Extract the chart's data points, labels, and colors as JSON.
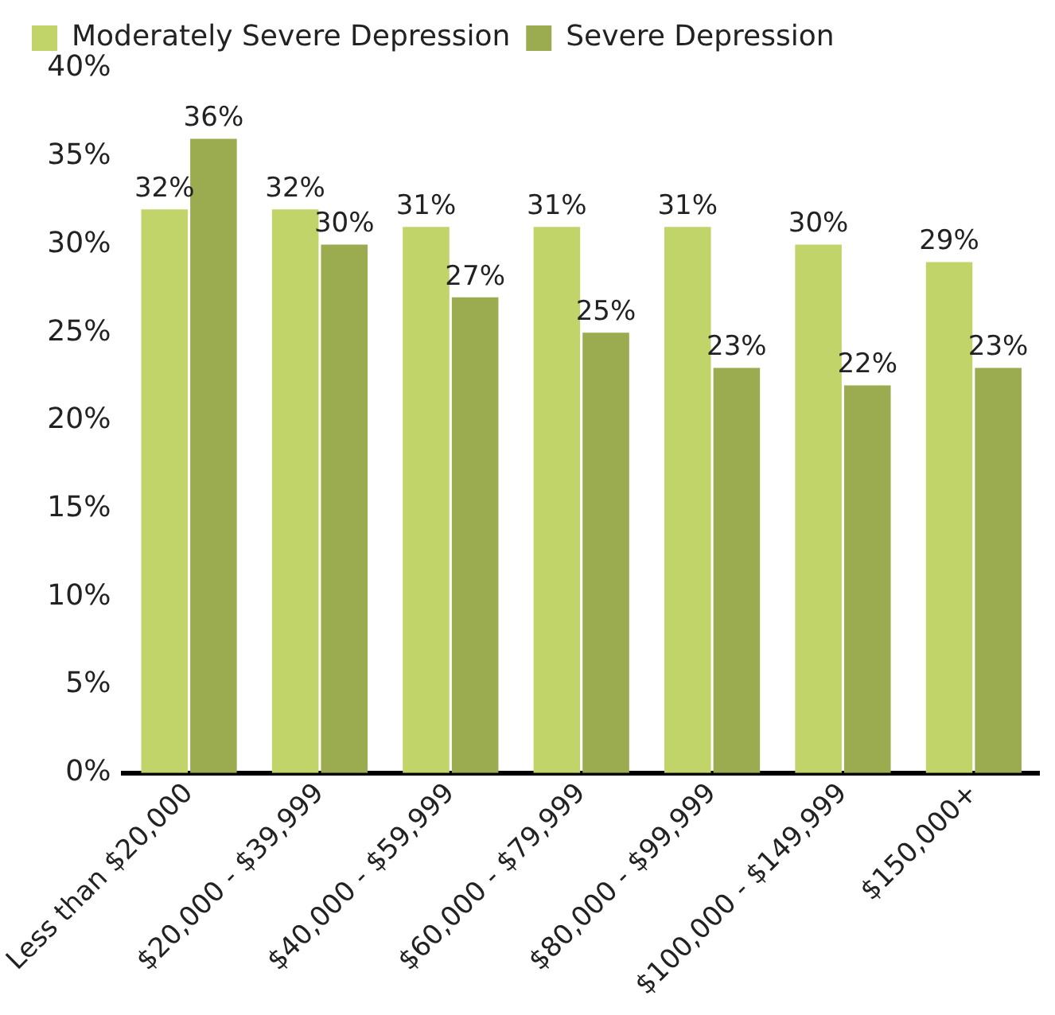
{
  "chart_data": {
    "type": "bar",
    "categories": [
      "Less than $20,000",
      "$20,000 - $39,999",
      "$40,000 - $59,999",
      "$60,000 - $79,999",
      "$80,000 - $99,999",
      "$100,000 - $149,999",
      "$150,000+"
    ],
    "series": [
      {
        "name": "Moderately Severe Depression",
        "color": "#c0d46a",
        "values": [
          32,
          32,
          31,
          31,
          31,
          30,
          29
        ],
        "value_labels": [
          "32%",
          "32%",
          "31%",
          "31%",
          "31%",
          "30%",
          "29%"
        ]
      },
      {
        "name": "Severe Depression",
        "color": "#9aab50",
        "values": [
          36,
          30,
          27,
          25,
          23,
          22,
          23
        ],
        "value_labels": [
          "36%",
          "30%",
          "27%",
          "25%",
          "23%",
          "22%",
          "23%"
        ]
      }
    ],
    "ylim": [
      0,
      40
    ],
    "yticks": [
      {
        "value": 0,
        "label": "0%"
      },
      {
        "value": 5,
        "label": "5%"
      },
      {
        "value": 10,
        "label": "10%"
      },
      {
        "value": 15,
        "label": "15%"
      },
      {
        "value": 20,
        "label": "20%"
      },
      {
        "value": 25,
        "label": "25%"
      },
      {
        "value": 30,
        "label": "30%"
      },
      {
        "value": 35,
        "label": "35%"
      },
      {
        "value": 40,
        "label": "40%"
      }
    ],
    "grid": false,
    "legend": "top left"
  }
}
